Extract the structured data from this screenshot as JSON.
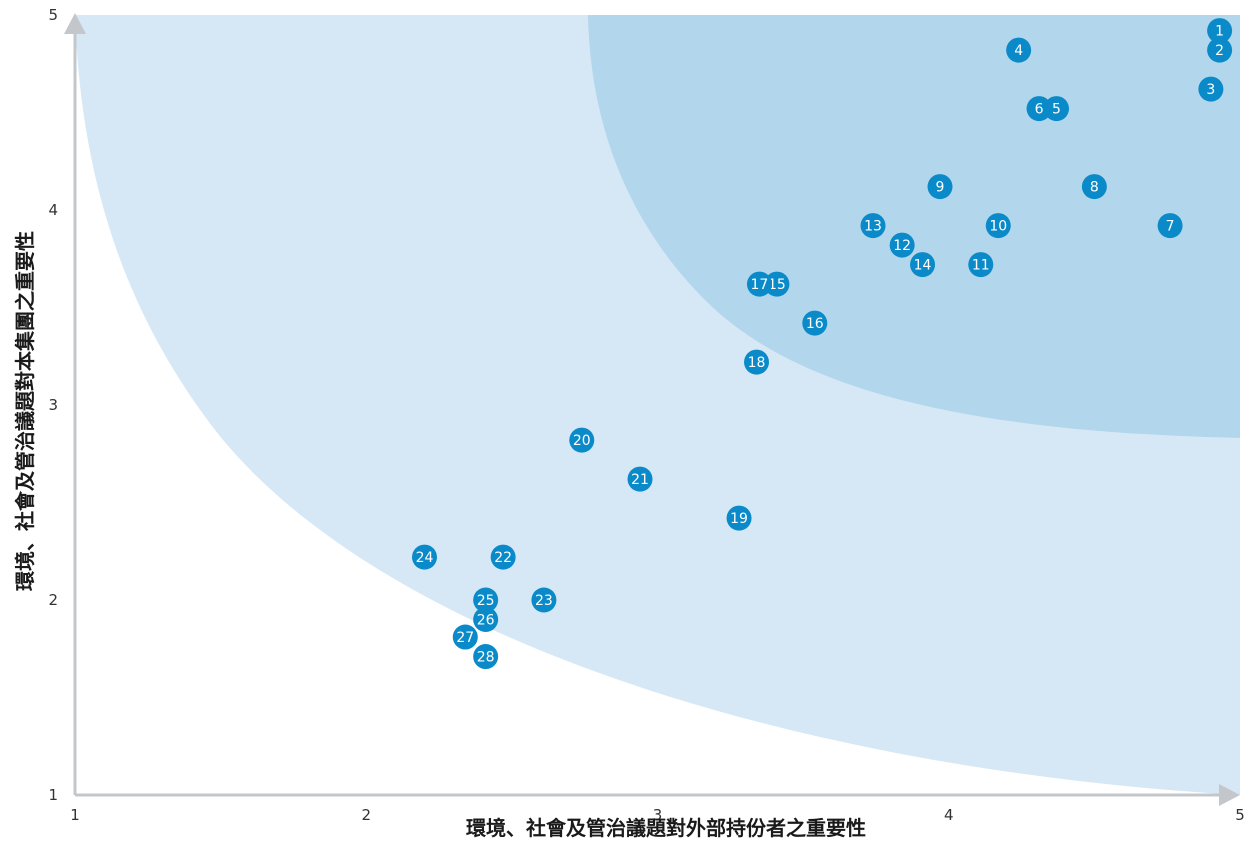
{
  "chart_data": {
    "type": "scatter",
    "xlabel": "環境、社會及管治議題對外部持份者之重要性",
    "ylabel": "環境、社會及管治議題對本集團之重要性",
    "xlim": [
      1,
      5
    ],
    "ylim": [
      1,
      5
    ],
    "x_ticks": [
      "1",
      "2",
      "3",
      "4",
      "5"
    ],
    "y_ticks": [
      "1",
      "2",
      "3",
      "4",
      "5"
    ],
    "grid": false,
    "colors": {
      "zone_light": "#d6e8f6",
      "zone_dark": "#b2d6ec",
      "point": "#0a8ac9",
      "axis": "#c3c7cb"
    },
    "points": [
      {
        "label": "1",
        "x": 4.93,
        "y": 4.92
      },
      {
        "label": "2",
        "x": 4.93,
        "y": 4.82
      },
      {
        "label": "3",
        "x": 4.9,
        "y": 4.62
      },
      {
        "label": "4",
        "x": 4.24,
        "y": 4.82
      },
      {
        "label": "5",
        "x": 4.37,
        "y": 4.52
      },
      {
        "label": "6",
        "x": 4.31,
        "y": 4.52
      },
      {
        "label": "7",
        "x": 4.76,
        "y": 3.92
      },
      {
        "label": "8",
        "x": 4.5,
        "y": 4.12
      },
      {
        "label": "9",
        "x": 3.97,
        "y": 4.12
      },
      {
        "label": "10",
        "x": 4.17,
        "y": 3.92
      },
      {
        "label": "11",
        "x": 4.11,
        "y": 3.72
      },
      {
        "label": "12",
        "x": 3.84,
        "y": 3.82
      },
      {
        "label": "13",
        "x": 3.74,
        "y": 3.92
      },
      {
        "label": "14",
        "x": 3.91,
        "y": 3.72
      },
      {
        "label": "15",
        "x": 3.41,
        "y": 3.62
      },
      {
        "label": "16",
        "x": 3.54,
        "y": 3.42
      },
      {
        "label": "17",
        "x": 3.35,
        "y": 3.62
      },
      {
        "label": "18",
        "x": 3.34,
        "y": 3.22
      },
      {
        "label": "19",
        "x": 3.28,
        "y": 2.42
      },
      {
        "label": "20",
        "x": 2.74,
        "y": 2.82
      },
      {
        "label": "21",
        "x": 2.94,
        "y": 2.62
      },
      {
        "label": "22",
        "x": 2.47,
        "y": 2.22
      },
      {
        "label": "23",
        "x": 2.61,
        "y": 2.0
      },
      {
        "label": "24",
        "x": 2.2,
        "y": 2.22
      },
      {
        "label": "25",
        "x": 2.41,
        "y": 2.0
      },
      {
        "label": "26",
        "x": 2.41,
        "y": 1.9
      },
      {
        "label": "27",
        "x": 2.34,
        "y": 1.81
      },
      {
        "label": "28",
        "x": 2.41,
        "y": 1.71
      }
    ]
  }
}
